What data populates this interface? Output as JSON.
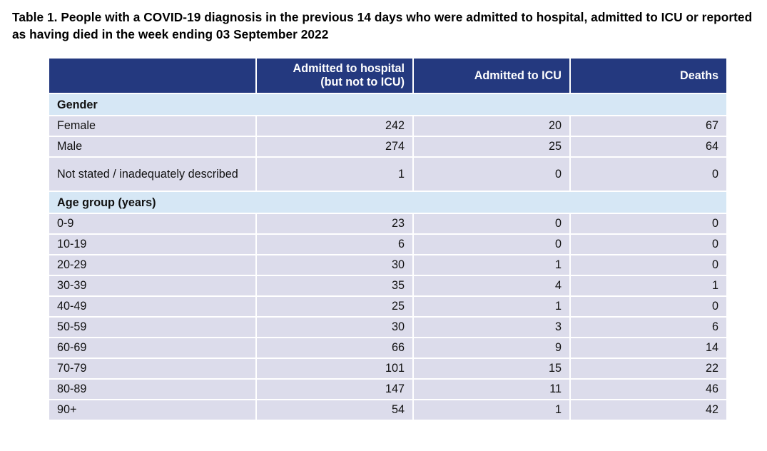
{
  "caption": "Table 1. People with a COVID-19 diagnosis in the previous 14 days who were admitted to hospital, admitted to ICU or reported as having died in the week ending 03 September 2022",
  "header": {
    "col0": "",
    "col1_line1": "Admitted to hospital",
    "col1_line2": "(but not to ICU)",
    "col2": "Admitted to ICU",
    "col3": "Deaths"
  },
  "colors": {
    "header_bg": "#24397f",
    "section_bg": "#d6e7f5",
    "row_bg": "#dcdceb"
  },
  "sections": [
    {
      "title": "Gender",
      "rows": [
        {
          "label": "Female",
          "hospital": "242",
          "icu": "20",
          "deaths": "67"
        },
        {
          "label": "Male",
          "hospital": "274",
          "icu": "25",
          "deaths": "64"
        },
        {
          "label": "Not stated / inadequately described",
          "hospital": "1",
          "icu": "0",
          "deaths": "0"
        }
      ]
    },
    {
      "title": "Age group (years)",
      "rows": [
        {
          "label": "0-9",
          "hospital": "23",
          "icu": "0",
          "deaths": "0"
        },
        {
          "label": "10-19",
          "hospital": "6",
          "icu": "0",
          "deaths": "0"
        },
        {
          "label": "20-29",
          "hospital": "30",
          "icu": "1",
          "deaths": "0"
        },
        {
          "label": "30-39",
          "hospital": "35",
          "icu": "4",
          "deaths": "1"
        },
        {
          "label": "40-49",
          "hospital": "25",
          "icu": "1",
          "deaths": "0"
        },
        {
          "label": "50-59",
          "hospital": "30",
          "icu": "3",
          "deaths": "6"
        },
        {
          "label": "60-69",
          "hospital": "66",
          "icu": "9",
          "deaths": "14"
        },
        {
          "label": "70-79",
          "hospital": "101",
          "icu": "15",
          "deaths": "22"
        },
        {
          "label": "80-89",
          "hospital": "147",
          "icu": "11",
          "deaths": "46"
        },
        {
          "label": "90+",
          "hospital": "54",
          "icu": "1",
          "deaths": "42"
        }
      ]
    }
  ]
}
